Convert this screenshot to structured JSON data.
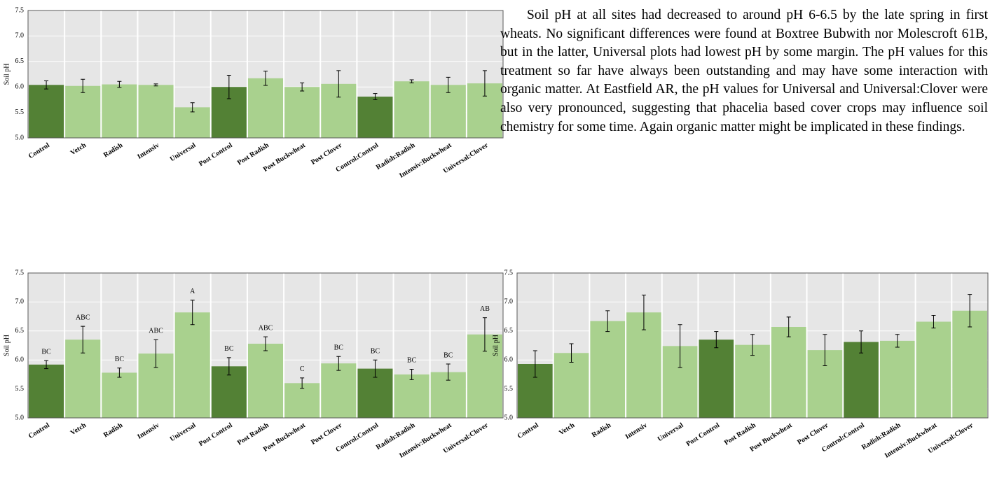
{
  "text": "Soil pH at all sites had decreased to around pH 6-6.5 by the late spring in first wheats. No significant differences were found at Boxtree Bubwith nor Molescroft 61B, but in the latter, Universal plots had lowest pH by some margin.  The pH values for this treatment so far have always been outstanding and may have some interaction with organic matter. At Eastfield AR, the pH values for Universal and Universal:Clover were also very pronounced, suggesting that phacelia based cover crops may influence soil chemistry for some time. Again organic matter might be implicated in these findings.",
  "chart_data": [
    {
      "type": "bar",
      "ylabel": "Soil pH",
      "categories": [
        "Control",
        "Vetch",
        "Radish",
        "Intensiv",
        "Universal",
        "Post Control",
        "Post Radish",
        "Post Buckwheat",
        "Post Clover",
        "Control:Control",
        "Radish:Radish",
        "Intensiv:Buckwheat",
        "Universal:Clover"
      ],
      "values": [
        6.04,
        6.02,
        6.05,
        6.04,
        5.6,
        6.0,
        6.17,
        6.0,
        6.06,
        5.81,
        6.11,
        6.04,
        6.07
      ],
      "errors": [
        0.08,
        0.13,
        0.06,
        0.02,
        0.09,
        0.23,
        0.14,
        0.08,
        0.26,
        0.06,
        0.03,
        0.15,
        0.25
      ],
      "colors": [
        "#538135",
        "#a9d18e",
        "#a9d18e",
        "#a9d18e",
        "#a9d18e",
        "#538135",
        "#a9d18e",
        "#a9d18e",
        "#a9d18e",
        "#538135",
        "#a9d18e",
        "#a9d18e",
        "#a9d18e"
      ],
      "ylim": [
        5.0,
        7.5
      ],
      "yticks": [
        {
          "value": 5,
          "label": "5.0"
        },
        5.5,
        {
          "value": 6,
          "label": "6.0"
        },
        6.5,
        {
          "value": 7,
          "label": "7.0"
        },
        7.5
      ],
      "grid": true
    },
    {
      "type": "bar",
      "ylabel": "Soil pH",
      "categories": [
        "Control",
        "Vetch",
        "Radish",
        "Intensiv",
        "Universal",
        "Post Control",
        "Post Radish",
        "Post Buckwheat",
        "Post Clover",
        "Control:Control",
        "Radish:Radish",
        "Intensiv:Buckwheat",
        "Universal:Clover"
      ],
      "values": [
        5.92,
        6.35,
        5.78,
        6.11,
        6.82,
        5.89,
        6.28,
        5.6,
        5.94,
        5.85,
        5.75,
        5.79,
        6.44
      ],
      "errors": [
        0.07,
        0.23,
        0.08,
        0.24,
        0.21,
        0.15,
        0.12,
        0.09,
        0.12,
        0.15,
        0.09,
        0.14,
        0.29
      ],
      "annotations": [
        "BC",
        "ABC",
        "BC",
        "ABC",
        "A",
        "BC",
        "ABC",
        "C",
        "BC",
        "BC",
        "BC",
        "BC",
        "AB"
      ],
      "colors": [
        "#538135",
        "#a9d18e",
        "#a9d18e",
        "#a9d18e",
        "#a9d18e",
        "#538135",
        "#a9d18e",
        "#a9d18e",
        "#a9d18e",
        "#538135",
        "#a9d18e",
        "#a9d18e",
        "#a9d18e"
      ],
      "ylim": [
        5.0,
        7.5
      ],
      "yticks": [
        {
          "value": 5,
          "label": "5.0"
        },
        5.5,
        {
          "value": 6,
          "label": "6.0"
        },
        6.5,
        {
          "value": 7,
          "label": "7.0"
        },
        7.5
      ],
      "grid": true
    },
    {
      "type": "bar",
      "ylabel": "Soil pH",
      "categories": [
        "Control",
        "Vetch",
        "Radish",
        "Intensiv",
        "Universal",
        "Post Control",
        "Post Radish",
        "Post Buckwheat",
        "Post Clover",
        "Control:Control",
        "Radish:Radish",
        "Intensiv:Buckwheat",
        "Universal:Clover"
      ],
      "values": [
        5.93,
        6.12,
        6.67,
        6.82,
        6.24,
        6.35,
        6.26,
        6.57,
        6.17,
        6.31,
        6.33,
        6.66,
        6.85
      ],
      "errors": [
        0.23,
        0.16,
        0.18,
        0.3,
        0.37,
        0.14,
        0.18,
        0.17,
        0.27,
        0.19,
        0.11,
        0.11,
        0.28
      ],
      "colors": [
        "#538135",
        "#a9d18e",
        "#a9d18e",
        "#a9d18e",
        "#a9d18e",
        "#538135",
        "#a9d18e",
        "#a9d18e",
        "#a9d18e",
        "#538135",
        "#a9d18e",
        "#a9d18e",
        "#a9d18e"
      ],
      "ylim": [
        5.0,
        7.5
      ],
      "yticks": [
        {
          "value": 5,
          "label": "5.0"
        },
        5.5,
        {
          "value": 6,
          "label": "6.0"
        },
        6.5,
        {
          "value": 7,
          "label": "7.0"
        },
        7.5
      ],
      "grid": true
    }
  ]
}
